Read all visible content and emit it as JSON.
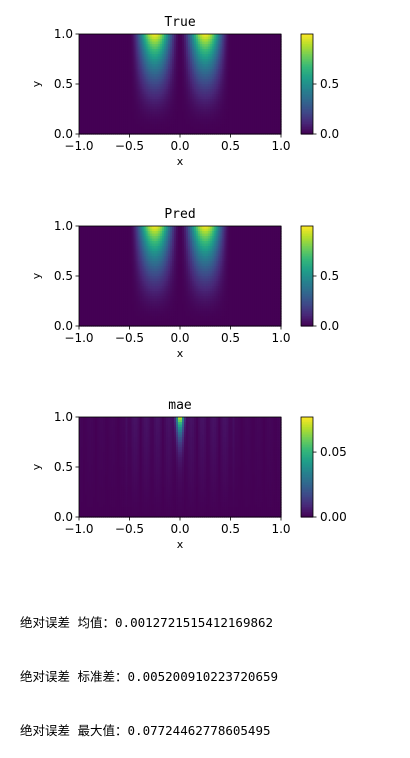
{
  "colormap": "viridis",
  "chart_data": [
    {
      "type": "heatmap",
      "title": "True",
      "xlabel": "x",
      "ylabel": "y",
      "xlim": [
        -1.0,
        1.0
      ],
      "ylim": [
        0.0,
        1.0
      ],
      "xticks": [
        "-1.0",
        "-0.5",
        "0.0",
        "0.5",
        "1.0"
      ],
      "yticks": [
        "0.0",
        "0.5",
        "1.0"
      ],
      "colorbar_range": [
        0.0,
        1.0
      ],
      "colorbar_ticks": [
        {
          "label": "0.0",
          "value": 0.0
        },
        {
          "label": "0.5",
          "value": 0.5
        }
      ],
      "field": "two vertical bands at |x|<0.5, peaks near x=±0.25, y=1.0, value ~1.0"
    },
    {
      "type": "heatmap",
      "title": "Pred",
      "xlabel": "x",
      "ylabel": "y",
      "xlim": [
        -1.0,
        1.0
      ],
      "ylim": [
        0.0,
        1.0
      ],
      "xticks": [
        "-1.0",
        "-0.5",
        "0.0",
        "0.5",
        "1.0"
      ],
      "yticks": [
        "0.0",
        "0.5",
        "1.0"
      ],
      "colorbar_range": [
        0.0,
        1.0
      ],
      "colorbar_ticks": [
        {
          "label": "0.0",
          "value": 0.0
        },
        {
          "label": "0.5",
          "value": 0.5
        }
      ]
    },
    {
      "type": "heatmap",
      "title": "mae",
      "xlabel": "x",
      "ylabel": "y",
      "xlim": [
        -1.0,
        1.0
      ],
      "ylim": [
        0.0,
        1.0
      ],
      "xticks": [
        "-1.0",
        "-0.5",
        "0.0",
        "0.5",
        "1.0"
      ],
      "yticks": [
        "0.0",
        "0.5",
        "1.0"
      ],
      "colorbar_range": [
        0.0,
        0.077
      ],
      "colorbar_ticks": [
        {
          "label": "0.00",
          "value": 0.0
        },
        {
          "label": "0.05",
          "value": 0.05
        }
      ]
    }
  ],
  "stats": [
    "绝对误差 均值：0.0012721515412169862",
    "绝对误差 标准差：0.005200910223720659",
    "绝对误差 最大值：0.07724462778605495"
  ]
}
